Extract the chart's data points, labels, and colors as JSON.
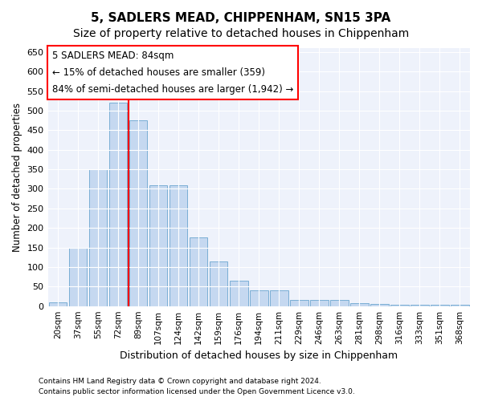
{
  "title1": "5, SADLERS MEAD, CHIPPENHAM, SN15 3PA",
  "title2": "Size of property relative to detached houses in Chippenham",
  "xlabel": "Distribution of detached houses by size in Chippenham",
  "ylabel": "Number of detached properties",
  "categories": [
    "20sqm",
    "37sqm",
    "55sqm",
    "72sqm",
    "89sqm",
    "107sqm",
    "124sqm",
    "142sqm",
    "159sqm",
    "176sqm",
    "194sqm",
    "211sqm",
    "229sqm",
    "246sqm",
    "263sqm",
    "281sqm",
    "298sqm",
    "316sqm",
    "333sqm",
    "351sqm",
    "368sqm"
  ],
  "values": [
    10,
    150,
    350,
    520,
    475,
    310,
    310,
    175,
    115,
    65,
    40,
    40,
    15,
    15,
    15,
    8,
    5,
    3,
    3,
    3,
    3
  ],
  "bar_color": "#c5d8f0",
  "bar_edge_color": "#7aaed4",
  "vline_color": "red",
  "annotation_text": "5 SADLERS MEAD: 84sqm\n← 15% of detached houses are smaller (359)\n84% of semi-detached houses are larger (1,942) →",
  "annotation_box_color": "white",
  "annotation_box_edge": "red",
  "ylim": [
    0,
    660
  ],
  "yticks": [
    0,
    50,
    100,
    150,
    200,
    250,
    300,
    350,
    400,
    450,
    500,
    550,
    600,
    650
  ],
  "footer1": "Contains HM Land Registry data © Crown copyright and database right 2024.",
  "footer2": "Contains public sector information licensed under the Open Government Licence v3.0.",
  "bg_color": "#ffffff",
  "plot_bg_color": "#eef2fb",
  "grid_color": "#ffffff",
  "title_fontsize": 11,
  "subtitle_fontsize": 10
}
